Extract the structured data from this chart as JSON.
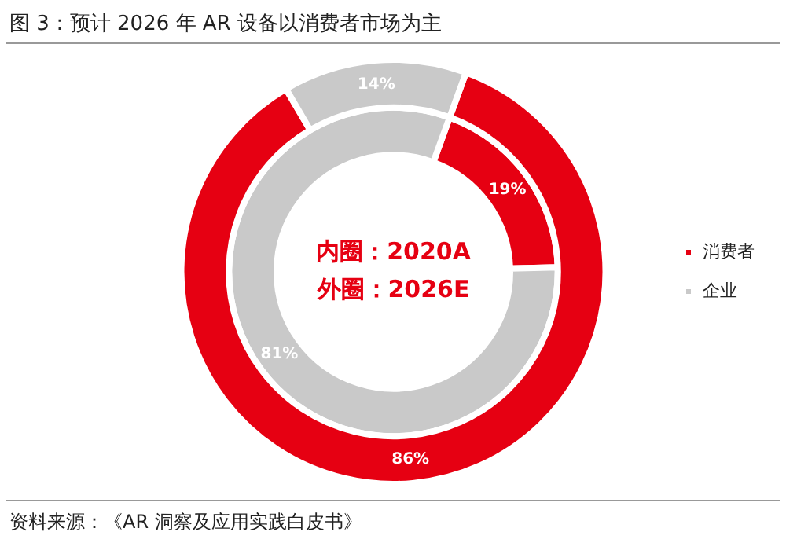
{
  "chart_data": {
    "type": "donut",
    "title": "图 3：预计 2026 年 AR 设备以消费者市场为主",
    "categories": [
      "消费者",
      "企业"
    ],
    "colors": [
      "#e60012",
      "#c9c9c9"
    ],
    "series": [
      {
        "values": [
          19,
          81
        ],
        "value_labels": [
          "19%",
          "81%"
        ]
      },
      {
        "values": [
          86,
          14
        ],
        "value_labels": [
          "86%",
          "14%"
        ]
      }
    ],
    "legend": "right",
    "annotations": [
      "内圈：2020A",
      "外圈：2026E",
      "资料来源：《AR 洞察及应用实践白皮书》"
    ]
  }
}
